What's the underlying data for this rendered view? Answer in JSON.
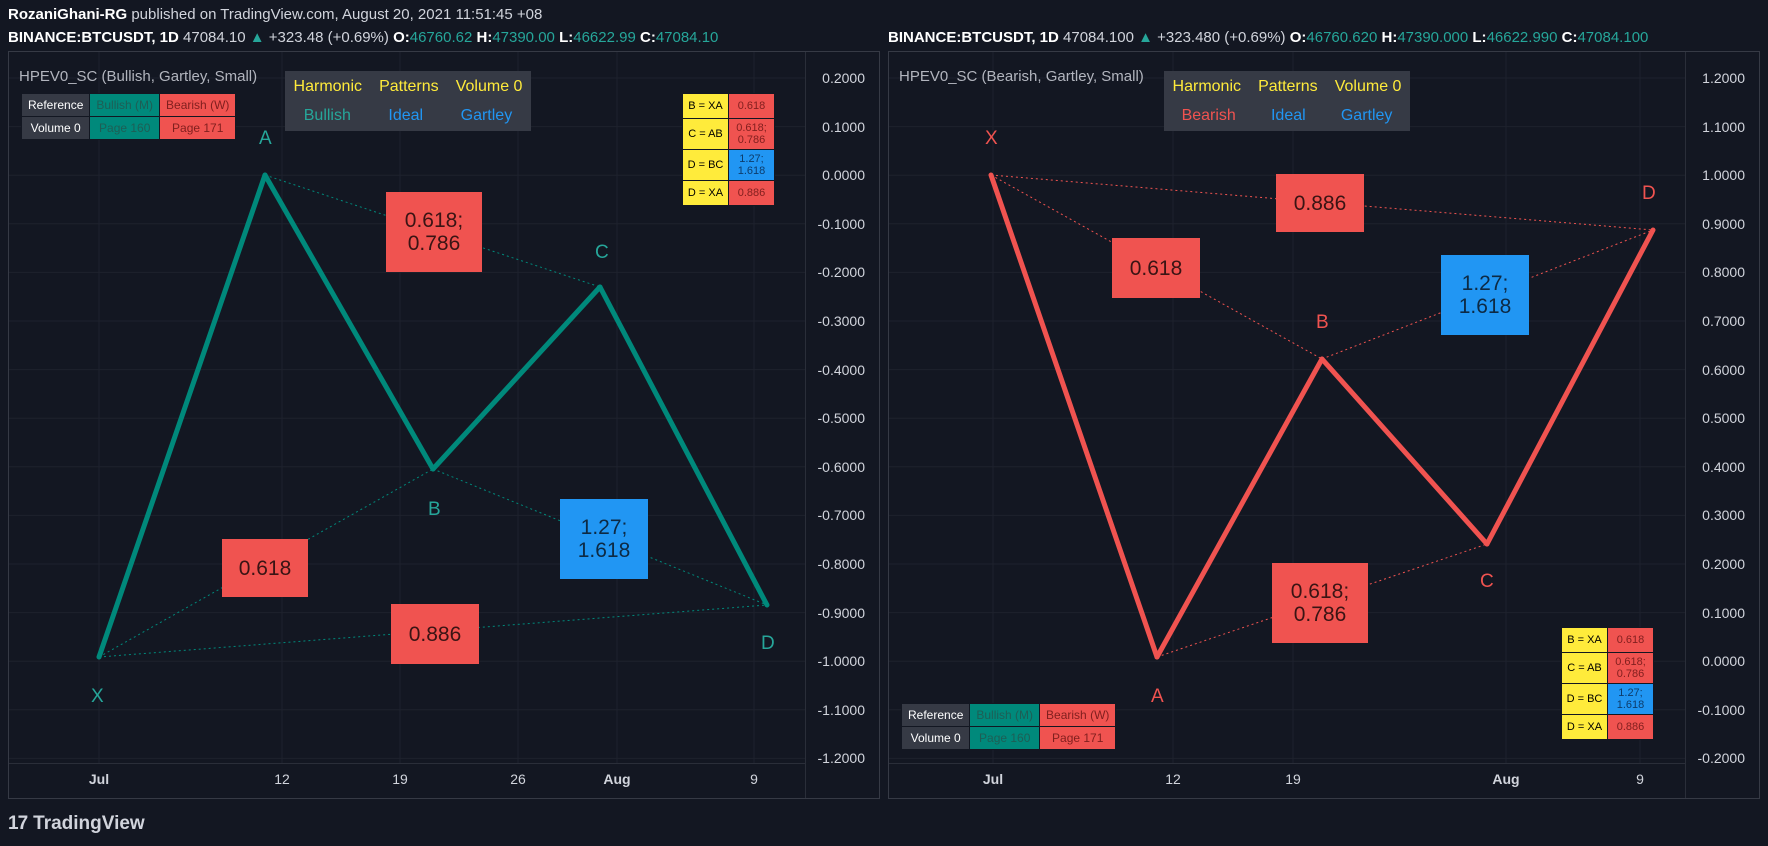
{
  "header": {
    "author": "RozaniGhani-RG",
    "published": "published on TradingView.com, August 20, 2021 11:51:45 +08"
  },
  "left": {
    "ohlc": {
      "symbol": "BINANCE:BTCUSDT, 1D",
      "last": "47084.10",
      "arrow": "▲",
      "change": "+323.48 (+0.69%)",
      "o_label": "O:",
      "o": "46760.62",
      "h_label": "H:",
      "h": "47390.00",
      "l_label": "L:",
      "l": "46622.99",
      "c_label": "C:",
      "c": "47084.10"
    },
    "indicator_title": "HPEV0_SC (Bullish, Gartley, Small)",
    "legend": {
      "row1": [
        "Harmonic",
        "Patterns",
        "Volume 0"
      ],
      "row2": [
        "Bullish",
        "Ideal",
        "Gartley"
      ]
    },
    "ref_table": [
      [
        "Reference",
        "Bullish (M)",
        "Bearish (W)"
      ],
      [
        "Volume 0",
        "Page 160",
        "Page 171"
      ]
    ],
    "ratio_table": [
      [
        "B = XA",
        "0.618"
      ],
      [
        "C = AB",
        "0.618;\n0.786"
      ],
      [
        "D = BC",
        "1.27;\n1.618"
      ],
      [
        "D = XA",
        "0.886"
      ]
    ],
    "points": [
      "X",
      "A",
      "B",
      "C",
      "D"
    ],
    "ratio_labels": [
      "0.618",
      "0.618;\n0.786",
      "1.27;\n1.618",
      "0.886"
    ],
    "y_ticks": [
      "0.2000",
      "0.1000",
      "0.0000",
      "-0.1000",
      "-0.2000",
      "-0.3000",
      "-0.4000",
      "-0.5000",
      "-0.6000",
      "-0.7000",
      "-0.8000",
      "-0.9000",
      "-1.0000",
      "-1.1000",
      "-1.2000"
    ],
    "x_ticks": [
      "Jul",
      "12",
      "19",
      "26",
      "Aug",
      "9"
    ],
    "color": "#00897b"
  },
  "right": {
    "ohlc": {
      "symbol": "BINANCE:BTCUSDT, 1D",
      "last": "47084.100",
      "arrow": "▲",
      "change": "+323.480 (+0.69%)",
      "o_label": "O:",
      "o": "46760.620",
      "h_label": "H:",
      "h": "47390.000",
      "l_label": "L:",
      "l": "46622.990",
      "c_label": "C:",
      "c": "47084.100"
    },
    "indicator_title": "HPEV0_SC (Bearish, Gartley, Small)",
    "legend": {
      "row1": [
        "Harmonic",
        "Patterns",
        "Volume 0"
      ],
      "row2": [
        "Bearish",
        "Ideal",
        "Gartley"
      ]
    },
    "ref_table": [
      [
        "Reference",
        "Bullish (M)",
        "Bearish (W)"
      ],
      [
        "Volume 0",
        "Page 160",
        "Page 171"
      ]
    ],
    "ratio_table": [
      [
        "B = XA",
        "0.618"
      ],
      [
        "C = AB",
        "0.618;\n0.786"
      ],
      [
        "D = BC",
        "1.27;\n1.618"
      ],
      [
        "D = XA",
        "0.886"
      ]
    ],
    "points": [
      "X",
      "A",
      "B",
      "C",
      "D"
    ],
    "ratio_labels": [
      "0.886",
      "0.618",
      "1.27;\n1.618",
      "0.618;\n0.786"
    ],
    "y_ticks": [
      "1.2000",
      "1.1000",
      "1.0000",
      "0.9000",
      "0.8000",
      "0.7000",
      "0.6000",
      "0.5000",
      "0.4000",
      "0.3000",
      "0.2000",
      "0.1000",
      "0.0000",
      "-0.1000",
      "-0.2000"
    ],
    "x_ticks": [
      "Jul",
      "12",
      "19",
      "Aug",
      "9"
    ],
    "color": "#f05350"
  },
  "footer": {
    "brand": "TradingView",
    "logo": "17"
  }
}
